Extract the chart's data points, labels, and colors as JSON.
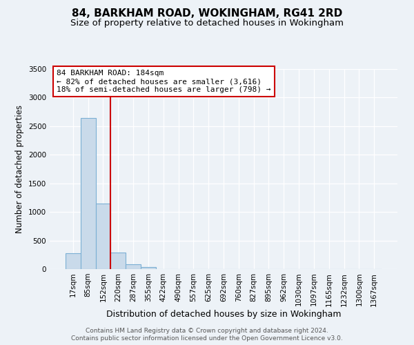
{
  "title": "84, BARKHAM ROAD, WOKINGHAM, RG41 2RD",
  "subtitle": "Size of property relative to detached houses in Wokingham",
  "xlabel": "Distribution of detached houses by size in Wokingham",
  "ylabel": "Number of detached properties",
  "bar_labels": [
    "17sqm",
    "85sqm",
    "152sqm",
    "220sqm",
    "287sqm",
    "355sqm",
    "422sqm",
    "490sqm",
    "557sqm",
    "625sqm",
    "692sqm",
    "760sqm",
    "827sqm",
    "895sqm",
    "962sqm",
    "1030sqm",
    "1097sqm",
    "1165sqm",
    "1232sqm",
    "1300sqm",
    "1367sqm"
  ],
  "bar_values": [
    280,
    2640,
    1150,
    285,
    80,
    40,
    0,
    0,
    0,
    0,
    0,
    0,
    0,
    0,
    0,
    0,
    0,
    0,
    0,
    0,
    0
  ],
  "bar_color": "#c9daea",
  "bar_edgecolor": "#7bafd4",
  "vline_color": "#cc0000",
  "ylim": [
    0,
    3500
  ],
  "yticks": [
    0,
    500,
    1000,
    1500,
    2000,
    2500,
    3000,
    3500
  ],
  "annotation_title": "84 BARKHAM ROAD: 184sqm",
  "annotation_line1": "← 82% of detached houses are smaller (3,616)",
  "annotation_line2": "18% of semi-detached houses are larger (798) →",
  "annotation_box_color": "#ffffff",
  "annotation_box_edgecolor": "#cc0000",
  "footer_line1": "Contains HM Land Registry data © Crown copyright and database right 2024.",
  "footer_line2": "Contains public sector information licensed under the Open Government Licence v3.0.",
  "bg_color": "#edf2f7",
  "grid_color": "#ffffff",
  "title_fontsize": 11,
  "subtitle_fontsize": 9.5,
  "ylabel_fontsize": 8.5,
  "xlabel_fontsize": 9,
  "tick_fontsize": 7.5,
  "footer_fontsize": 6.5,
  "annot_fontsize": 8
}
